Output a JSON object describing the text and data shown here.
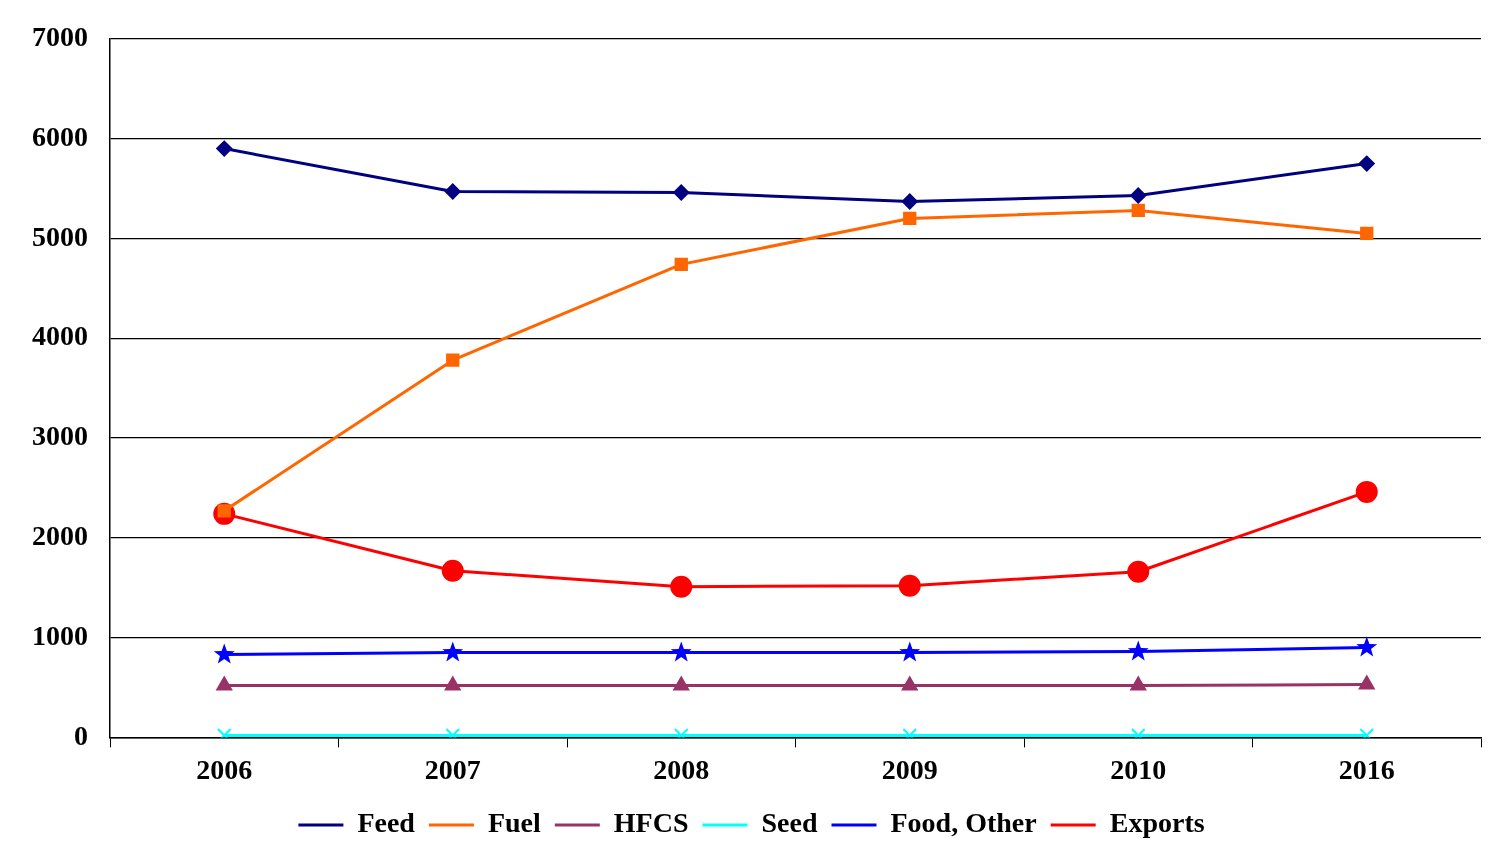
{
  "chart_data": {
    "type": "line",
    "categories": [
      "2006",
      "2007",
      "2008",
      "2009",
      "2010",
      "2016"
    ],
    "series": [
      {
        "name": "Feed",
        "color": "#000080",
        "marker": "diamond",
        "values": [
          5900,
          5470,
          5460,
          5370,
          5430,
          5750
        ]
      },
      {
        "name": "Fuel",
        "color": "#ff6600",
        "marker": "square",
        "values": [
          2270,
          3780,
          4740,
          5200,
          5280,
          5050
        ]
      },
      {
        "name": "HFCS",
        "color": "#993366",
        "marker": "triangle",
        "values": [
          520,
          520,
          520,
          520,
          520,
          530
        ]
      },
      {
        "name": "Seed",
        "color": "#00ffff",
        "marker": "cross",
        "values": [
          20,
          20,
          20,
          20,
          20,
          20
        ]
      },
      {
        "name": "Food, Other",
        "color": "#0000ff",
        "marker": "star",
        "values": [
          830,
          850,
          850,
          850,
          860,
          900
        ]
      },
      {
        "name": "Exports",
        "color": "#ff0000",
        "marker": "circle",
        "values": [
          2240,
          1670,
          1510,
          1520,
          1660,
          2460
        ]
      }
    ],
    "ylim": [
      0,
      7000
    ],
    "yticks": [
      0,
      1000,
      2000,
      3000,
      4000,
      5000,
      6000,
      7000
    ],
    "grid": "y",
    "legend": "bottom",
    "line_style": "solid"
  }
}
